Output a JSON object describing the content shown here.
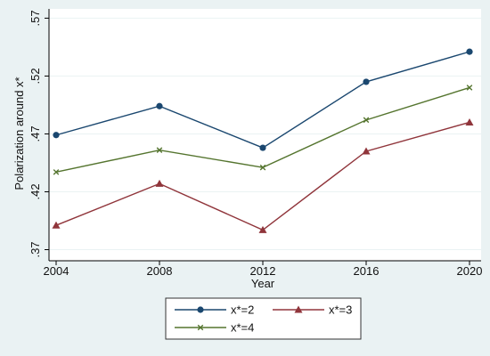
{
  "chart_data": {
    "type": "line",
    "x": [
      2004,
      2008,
      2012,
      2016,
      2020
    ],
    "x_tick_labels": [
      "2004",
      "2008",
      "2012",
      "2016",
      "2020"
    ],
    "y_tick_values": [
      0.37,
      0.42,
      0.47,
      0.52,
      0.57
    ],
    "y_tick_labels": [
      ".37",
      ".42",
      ".47",
      ".52",
      ".57"
    ],
    "ylim": [
      0.365,
      0.578
    ],
    "xlim": [
      2004,
      2020
    ],
    "xlabel": "Year",
    "ylabel": "Polarization around x*",
    "grid": true,
    "legend_position": "bottom",
    "series": [
      {
        "name": "x*=2",
        "color": "#1a476f",
        "marker": "circle",
        "values": [
          0.469,
          0.494,
          0.458,
          0.515,
          0.541
        ]
      },
      {
        "name": "x*=3",
        "color": "#90353b",
        "marker": "triangle",
        "values": [
          0.391,
          0.427,
          0.387,
          0.455,
          0.48
        ]
      },
      {
        "name": "x*=4",
        "color": "#55752f",
        "marker": "x",
        "values": [
          0.437,
          0.456,
          0.441,
          0.482,
          0.51
        ]
      }
    ]
  }
}
